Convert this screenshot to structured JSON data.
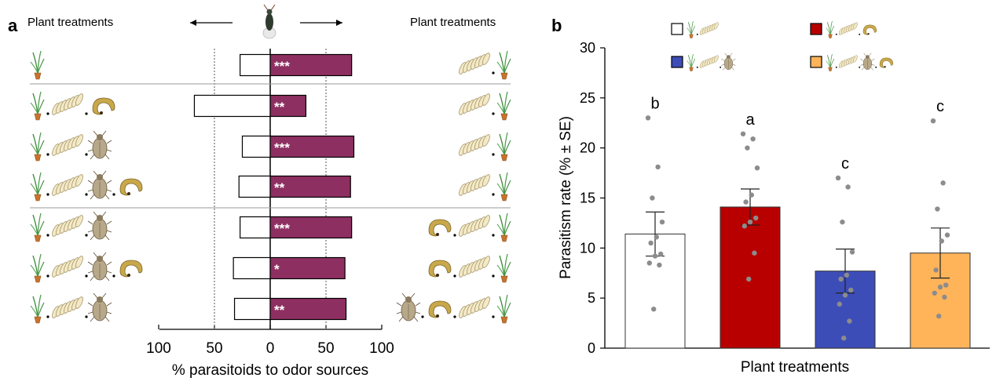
{
  "panel_a": {
    "label": "a",
    "left_heading": "Plant treatments",
    "right_heading": "Plant treatments",
    "xlabel": "% parasitoids to odor sources",
    "tick_labels": [
      "100",
      "50",
      "0",
      "50",
      "100"
    ]
  },
  "panel_b": {
    "label": "b",
    "xlabel": "Plant treatments",
    "ylabel": "Parasitism rate (% ± SE)",
    "tick_labels": [
      "0",
      "5",
      "10",
      "15",
      "20",
      "25",
      "30"
    ]
  },
  "colors": {
    "bar_a_right": "#8e2f61",
    "white": "#ffffff",
    "red": "#b80000",
    "blue": "#3d4db8",
    "orange": "#ffb45a",
    "dots": "#8c8c8c"
  },
  "chart_data": [
    {
      "type": "bar",
      "orientation": "horizontal",
      "x_range": [
        -100,
        100
      ],
      "reference_lines": [
        -50,
        50
      ],
      "rows": [
        {
          "left": 27,
          "right": 73,
          "sig": "***",
          "left_items": [
            "plant"
          ],
          "right_items": [
            "eggs",
            "plant"
          ]
        },
        {
          "left": 68,
          "right": 32,
          "sig": "**",
          "left_items": [
            "plant",
            "eggs",
            "larva"
          ],
          "right_items": [
            "eggs",
            "plant"
          ]
        },
        {
          "left": 25,
          "right": 75,
          "sig": "***",
          "left_items": [
            "plant",
            "eggs",
            "bug"
          ],
          "right_items": [
            "eggs",
            "plant"
          ]
        },
        {
          "left": 28,
          "right": 72,
          "sig": "**",
          "left_items": [
            "plant",
            "eggs",
            "bug",
            "larva"
          ],
          "right_items": [
            "eggs",
            "plant"
          ]
        },
        {
          "left": 27,
          "right": 73,
          "sig": "***",
          "left_items": [
            "plant",
            "eggs",
            "bug"
          ],
          "right_items": [
            "larva",
            "eggs",
            "plant"
          ]
        },
        {
          "left": 33,
          "right": 67,
          "sig": "*",
          "left_items": [
            "plant",
            "eggs",
            "bug",
            "larva"
          ],
          "right_items": [
            "larva",
            "eggs",
            "plant"
          ]
        },
        {
          "left": 32,
          "right": 68,
          "sig": "**",
          "left_items": [
            "plant",
            "eggs",
            "bug"
          ],
          "right_items": [
            "bug",
            "larva",
            "eggs",
            "plant"
          ]
        }
      ]
    },
    {
      "type": "bar",
      "ylim": [
        0,
        30
      ],
      "series": [
        {
          "value": 11.4,
          "se": 2.2,
          "letter": "b",
          "color_key": "white",
          "legend_items": [
            "plant",
            "eggs"
          ],
          "points": [
            23.0,
            18.1,
            15.0,
            12.6,
            11.1,
            10.5,
            9.4,
            9.2,
            8.5,
            8.3,
            3.9
          ]
        },
        {
          "value": 14.1,
          "se": 1.8,
          "letter": "a",
          "color_key": "red",
          "legend_items": [
            "plant",
            "eggs",
            "larva"
          ],
          "points": [
            21.4,
            20.9,
            20.0,
            18.0,
            15.3,
            14.6,
            13.0,
            12.6,
            12.2,
            9.5,
            6.9
          ]
        },
        {
          "value": 7.7,
          "se": 2.2,
          "letter": "c",
          "color_key": "blue",
          "legend_items": [
            "plant",
            "eggs",
            "bug"
          ],
          "points": [
            17.0,
            16.1,
            12.6,
            9.6,
            7.3,
            6.9,
            5.8,
            5.3,
            4.4,
            2.7,
            1.0
          ]
        },
        {
          "value": 9.5,
          "se": 2.5,
          "letter": "c",
          "color_key": "orange",
          "legend_items": [
            "plant",
            "eggs",
            "bug",
            "larva"
          ],
          "points": [
            22.7,
            16.5,
            13.9,
            11.3,
            10.7,
            7.8,
            6.3,
            6.1,
            5.5,
            5.1,
            3.2
          ]
        }
      ]
    }
  ]
}
